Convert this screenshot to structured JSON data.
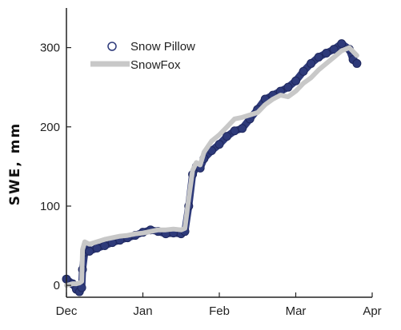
{
  "chart_data": {
    "type": "line",
    "xlabel": "",
    "ylabel": "SWE, mm",
    "x_ticks": [
      "Dec",
      "Jan",
      "Feb",
      "Mar",
      "Apr"
    ],
    "y_ticks": [
      "0",
      "100",
      "200",
      "300"
    ],
    "xlim": [
      0,
      4
    ],
    "ylim": [
      -15,
      350
    ],
    "grid": false,
    "legend_position": "top-left",
    "series": [
      {
        "name": "Snow Pillow",
        "marker": "circle",
        "color": "#2e3a7a",
        "x": [
          0.0,
          0.08,
          0.13,
          0.17,
          0.2,
          0.21,
          0.24,
          0.28,
          0.3,
          0.4,
          0.5,
          0.6,
          0.7,
          0.8,
          0.9,
          1.0,
          1.1,
          1.2,
          1.3,
          1.4,
          1.5,
          1.55,
          1.6,
          1.65,
          1.7,
          1.75,
          1.8,
          1.9,
          2.0,
          2.1,
          2.2,
          2.3,
          2.4,
          2.5,
          2.6,
          2.7,
          2.8,
          2.9,
          3.0,
          3.1,
          3.2,
          3.3,
          3.4,
          3.5,
          3.6,
          3.7,
          3.75,
          3.8
        ],
        "y": [
          8,
          2,
          -5,
          -8,
          -3,
          20,
          42,
          45,
          43,
          47,
          50,
          54,
          57,
          60,
          63,
          67,
          70,
          68,
          65,
          66,
          65,
          68,
          100,
          140,
          150,
          148,
          160,
          170,
          178,
          188,
          195,
          198,
          210,
          222,
          235,
          240,
          245,
          250,
          258,
          270,
          280,
          288,
          293,
          298,
          305,
          298,
          285,
          280
        ]
      },
      {
        "name": "SnowFox",
        "color": "#c8c8c8",
        "x": [
          0.0,
          0.08,
          0.13,
          0.17,
          0.2,
          0.21,
          0.24,
          0.28,
          0.3,
          0.4,
          0.5,
          0.6,
          0.7,
          0.8,
          0.9,
          1.0,
          1.1,
          1.2,
          1.3,
          1.4,
          1.5,
          1.55,
          1.6,
          1.65,
          1.7,
          1.75,
          1.8,
          1.9,
          2.0,
          2.1,
          2.2,
          2.3,
          2.4,
          2.5,
          2.6,
          2.7,
          2.8,
          2.9,
          3.0,
          3.1,
          3.2,
          3.3,
          3.4,
          3.5,
          3.6,
          3.7,
          3.75,
          3.8
        ],
        "y": [
          0,
          2,
          2,
          3,
          5,
          45,
          55,
          53,
          52,
          55,
          58,
          60,
          62,
          63,
          65,
          66,
          68,
          70,
          70,
          71,
          70,
          72,
          110,
          145,
          155,
          152,
          168,
          182,
          190,
          200,
          210,
          212,
          215,
          218,
          228,
          235,
          240,
          238,
          245,
          255,
          262,
          272,
          280,
          288,
          296,
          300,
          295,
          290
        ]
      }
    ]
  }
}
